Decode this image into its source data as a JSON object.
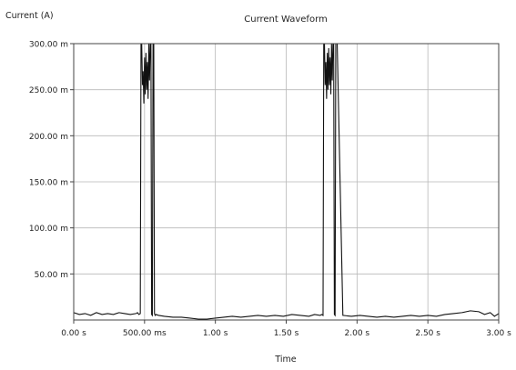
{
  "chart_data": {
    "type": "line",
    "title": "Current Waveform",
    "xlabel": "Time",
    "ylabel": "Current (A)",
    "xlim": [
      0,
      3.0
    ],
    "ylim": [
      0,
      0.3
    ],
    "x_unit": "s",
    "y_unit": "A",
    "grid": true,
    "x_ticks": [
      {
        "value": 0.0,
        "label": "0.00 s"
      },
      {
        "value": 0.5,
        "label": "500.00 ms"
      },
      {
        "value": 1.0,
        "label": "1.00 s"
      },
      {
        "value": 1.5,
        "label": "1.50 s"
      },
      {
        "value": 2.0,
        "label": "2.00 s"
      },
      {
        "value": 2.5,
        "label": "2.50 s"
      },
      {
        "value": 3.0,
        "label": "3.00 s"
      }
    ],
    "y_ticks": [
      {
        "value": 0.05,
        "label": "50.00 m"
      },
      {
        "value": 0.1,
        "label": "100.00 m"
      },
      {
        "value": 0.15,
        "label": "150.00 m"
      },
      {
        "value": 0.2,
        "label": "200.00 m"
      },
      {
        "value": 0.25,
        "label": "250.00 m"
      },
      {
        "value": 0.3,
        "label": "300.00 m"
      }
    ],
    "series": [
      {
        "color": "#111111",
        "x": [
          0.0,
          0.04,
          0.08,
          0.12,
          0.16,
          0.2,
          0.24,
          0.28,
          0.32,
          0.36,
          0.4,
          0.44,
          0.45,
          0.46,
          0.47,
          0.475,
          0.48,
          0.485,
          0.49,
          0.495,
          0.5,
          0.505,
          0.51,
          0.515,
          0.52,
          0.525,
          0.53,
          0.535,
          0.54,
          0.545,
          0.55,
          0.555,
          0.56,
          0.565,
          0.57,
          0.575,
          0.58,
          0.6,
          0.64,
          0.7,
          0.76,
          0.82,
          0.88,
          0.94,
          1.0,
          1.06,
          1.12,
          1.18,
          1.24,
          1.3,
          1.36,
          1.42,
          1.48,
          1.54,
          1.6,
          1.66,
          1.7,
          1.74,
          1.75,
          1.76,
          1.765,
          1.77,
          1.775,
          1.78,
          1.785,
          1.79,
          1.795,
          1.8,
          1.805,
          1.81,
          1.815,
          1.82,
          1.825,
          1.83,
          1.835,
          1.84,
          1.845,
          1.85,
          1.86,
          1.9,
          1.96,
          2.02,
          2.08,
          2.14,
          2.2,
          2.26,
          2.32,
          2.38,
          2.44,
          2.5,
          2.56,
          2.62,
          2.68,
          2.74,
          2.8,
          2.86,
          2.9,
          2.94,
          2.97,
          3.0
        ],
        "y": [
          0.008,
          0.006,
          0.007,
          0.005,
          0.008,
          0.006,
          0.007,
          0.006,
          0.008,
          0.007,
          0.006,
          0.007,
          0.008,
          0.006,
          0.007,
          0.3,
          0.3,
          0.255,
          0.27,
          0.235,
          0.285,
          0.245,
          0.29,
          0.25,
          0.28,
          0.24,
          0.3,
          0.26,
          0.3,
          0.3,
          0.006,
          0.005,
          0.3,
          0.3,
          0.007,
          0.005,
          0.006,
          0.005,
          0.004,
          0.003,
          0.003,
          0.002,
          0.001,
          0.001,
          0.002,
          0.003,
          0.004,
          0.003,
          0.004,
          0.005,
          0.004,
          0.005,
          0.004,
          0.006,
          0.005,
          0.004,
          0.006,
          0.005,
          0.006,
          0.005,
          0.3,
          0.3,
          0.255,
          0.28,
          0.24,
          0.29,
          0.25,
          0.295,
          0.255,
          0.285,
          0.245,
          0.3,
          0.26,
          0.3,
          0.3,
          0.006,
          0.005,
          0.3,
          0.3,
          0.005,
          0.004,
          0.005,
          0.004,
          0.003,
          0.004,
          0.003,
          0.004,
          0.005,
          0.004,
          0.005,
          0.004,
          0.006,
          0.007,
          0.008,
          0.01,
          0.009,
          0.006,
          0.008,
          0.004,
          0.007
        ]
      }
    ]
  }
}
